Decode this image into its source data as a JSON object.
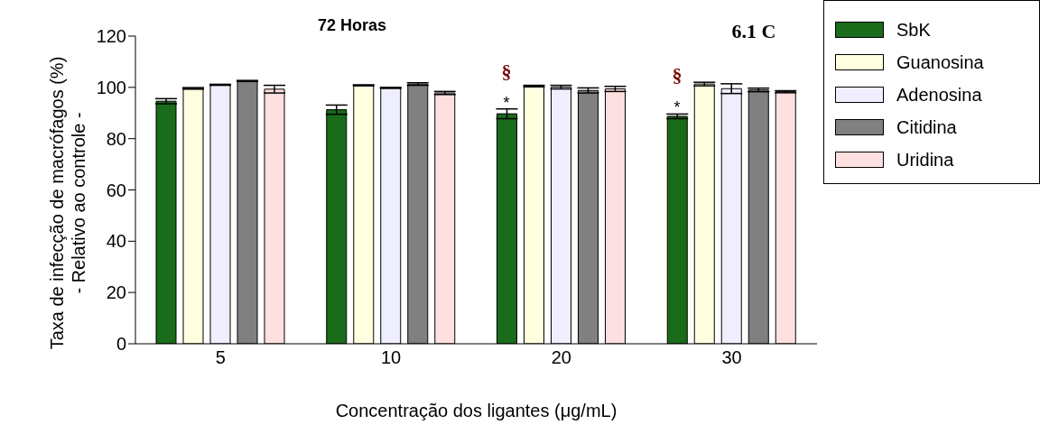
{
  "chart_data": {
    "type": "bar",
    "title": "72 Horas",
    "xlabel": "Concentração dos ligantes (μg/mL)",
    "ylabel": "Taxa de infecção de macrófagos (%)\n- Relativo ao controle -",
    "categories": [
      "5",
      "10",
      "20",
      "30"
    ],
    "series": [
      {
        "name": "SbK",
        "color": "#1a6b1a",
        "values": [
          94.6,
          91.3,
          89.7,
          88.7
        ],
        "errors": [
          1.0,
          1.8,
          1.9,
          0.9
        ]
      },
      {
        "name": "Guanosina",
        "color": "#ffffe0",
        "values": [
          99.6,
          100.8,
          100.5,
          101.3
        ],
        "errors": [
          0.3,
          0.2,
          0.3,
          0.7
        ]
      },
      {
        "name": "Adenosina",
        "color": "#eeeeff",
        "values": [
          101.0,
          99.8,
          100.1,
          99.5
        ],
        "errors": [
          0.2,
          0.2,
          0.7,
          1.9
        ]
      },
      {
        "name": "Citidina",
        "color": "#808080",
        "values": [
          102.5,
          101.3,
          98.8,
          99.0
        ],
        "errors": [
          0.2,
          0.5,
          1.0,
          0.7
        ]
      },
      {
        "name": "Uridina",
        "color": "#ffe0e0",
        "values": [
          99.3,
          97.8,
          99.4,
          98.3
        ],
        "errors": [
          1.5,
          0.6,
          1.0,
          0.4
        ]
      }
    ],
    "ylim": [
      0,
      120
    ],
    "yticks": [
      0,
      20,
      40,
      60,
      80,
      100,
      120
    ],
    "grid": false,
    "legend": "top right",
    "annotations": [
      "6.1 C",
      "*",
      "§",
      "*",
      "§"
    ]
  }
}
